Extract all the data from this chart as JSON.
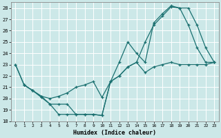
{
  "xlabel": "Humidex (Indice chaleur)",
  "bg_color": "#cce8e8",
  "grid_color": "#ffffff",
  "line_color": "#1a7070",
  "marker": "+",
  "xlim": [
    -0.5,
    23.5
  ],
  "ylim": [
    18,
    28.5
  ],
  "yticks": [
    18,
    19,
    20,
    21,
    22,
    23,
    24,
    25,
    26,
    27,
    28
  ],
  "xticks": [
    0,
    1,
    2,
    3,
    4,
    5,
    6,
    7,
    8,
    9,
    10,
    11,
    12,
    13,
    14,
    15,
    16,
    17,
    18,
    19,
    20,
    21,
    22,
    23
  ],
  "line1_x": [
    0,
    1,
    2,
    3,
    4,
    5,
    6,
    7,
    8,
    9,
    10,
    11,
    12,
    13,
    14,
    15,
    16,
    17,
    18,
    19,
    20,
    21,
    22,
    23
  ],
  "line1_y": [
    23.0,
    21.2,
    20.7,
    20.1,
    19.5,
    18.6,
    18.6,
    18.6,
    18.6,
    18.6,
    18.5,
    21.5,
    23.2,
    25.0,
    24.0,
    23.2,
    26.7,
    27.5,
    28.2,
    28.0,
    26.5,
    24.5,
    23.2,
    23.2
  ],
  "line2_x": [
    0,
    1,
    2,
    3,
    4,
    5,
    6,
    7,
    8,
    9,
    10,
    11,
    12,
    13,
    14,
    15,
    16,
    17,
    18,
    19,
    20,
    21,
    22,
    23
  ],
  "line2_y": [
    23.0,
    21.2,
    20.7,
    20.2,
    20.0,
    20.2,
    20.5,
    21.0,
    21.2,
    21.5,
    20.1,
    21.5,
    22.0,
    22.8,
    23.2,
    25.0,
    26.5,
    27.3,
    28.1,
    28.0,
    28.0,
    26.5,
    24.5,
    23.2
  ],
  "line3_x": [
    1,
    2,
    3,
    4,
    5,
    6,
    7,
    8,
    9,
    10,
    11,
    12,
    13,
    14,
    15,
    16,
    17,
    18,
    19,
    20,
    21,
    22,
    23
  ],
  "line3_y": [
    21.2,
    20.7,
    20.2,
    19.5,
    19.5,
    19.5,
    18.6,
    18.6,
    18.6,
    18.5,
    21.5,
    22.0,
    22.8,
    23.2,
    22.3,
    22.8,
    23.0,
    23.2,
    23.0,
    23.0,
    23.0,
    23.0,
    23.2
  ]
}
